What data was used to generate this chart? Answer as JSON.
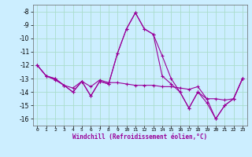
{
  "xlabel": "Windchill (Refroidissement éolien,°C)",
  "background_color": "#cceeff",
  "grid_color": "#aaddcc",
  "line_color": "#990099",
  "xlim": [
    -0.5,
    23.5
  ],
  "ylim": [
    -16.5,
    -7.5
  ],
  "yticks": [
    -16,
    -15,
    -14,
    -13,
    -12,
    -11,
    -10,
    -9,
    -8
  ],
  "xticks": [
    0,
    1,
    2,
    3,
    4,
    5,
    6,
    7,
    8,
    9,
    10,
    11,
    12,
    13,
    14,
    15,
    16,
    17,
    18,
    19,
    20,
    21,
    22,
    23
  ],
  "series": [
    [
      [
        0,
        -12.0
      ],
      [
        1,
        -12.8
      ],
      [
        2,
        -13.0
      ],
      [
        3,
        -13.5
      ],
      [
        4,
        -14.0
      ],
      [
        5,
        -13.2
      ],
      [
        6,
        -14.3
      ],
      [
        7,
        -13.2
      ],
      [
        8,
        -13.4
      ],
      [
        9,
        -11.1
      ],
      [
        10,
        -9.3
      ],
      [
        11,
        -8.1
      ],
      [
        12,
        -9.3
      ],
      [
        13,
        -9.7
      ],
      [
        14,
        -11.3
      ],
      [
        15,
        -13.0
      ],
      [
        16,
        -14.0
      ],
      [
        17,
        -15.2
      ],
      [
        18,
        -14.0
      ],
      [
        19,
        -14.5
      ],
      [
        20,
        -16.0
      ],
      [
        21,
        -15.0
      ],
      [
        22,
        -14.5
      ],
      [
        23,
        -13.0
      ]
    ],
    [
      [
        0,
        -12.0
      ],
      [
        1,
        -12.8
      ],
      [
        2,
        -13.1
      ],
      [
        3,
        -13.5
      ],
      [
        4,
        -13.7
      ],
      [
        5,
        -13.2
      ],
      [
        6,
        -13.6
      ],
      [
        7,
        -13.1
      ],
      [
        8,
        -13.3
      ],
      [
        9,
        -13.3
      ],
      [
        10,
        -13.4
      ],
      [
        11,
        -13.5
      ],
      [
        12,
        -13.5
      ],
      [
        13,
        -13.5
      ],
      [
        14,
        -13.6
      ],
      [
        15,
        -13.6
      ],
      [
        16,
        -13.7
      ],
      [
        17,
        -13.8
      ],
      [
        18,
        -13.6
      ],
      [
        19,
        -14.5
      ],
      [
        20,
        -14.5
      ],
      [
        21,
        -14.6
      ],
      [
        22,
        -14.5
      ],
      [
        23,
        -13.0
      ]
    ],
    [
      [
        0,
        -12.0
      ],
      [
        1,
        -12.8
      ],
      [
        2,
        -13.0
      ],
      [
        3,
        -13.5
      ],
      [
        4,
        -14.0
      ],
      [
        5,
        -13.2
      ],
      [
        6,
        -14.3
      ],
      [
        7,
        -13.2
      ],
      [
        8,
        -13.4
      ],
      [
        9,
        -11.1
      ],
      [
        10,
        -9.3
      ],
      [
        11,
        -8.1
      ],
      [
        12,
        -9.3
      ],
      [
        13,
        -9.7
      ],
      [
        14,
        -12.8
      ],
      [
        15,
        -13.4
      ],
      [
        16,
        -14.0
      ],
      [
        17,
        -15.2
      ],
      [
        18,
        -14.0
      ],
      [
        19,
        -14.8
      ],
      [
        20,
        -16.0
      ],
      [
        21,
        -15.0
      ],
      [
        22,
        -14.5
      ],
      [
        23,
        -13.0
      ]
    ]
  ]
}
